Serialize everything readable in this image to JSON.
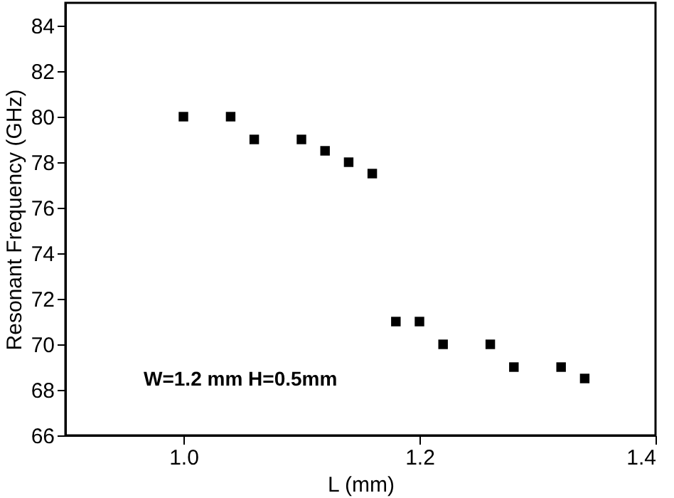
{
  "chart_data": {
    "type": "scatter",
    "xlabel": "L (mm)",
    "ylabel": "Resonant Frequency (GHz)",
    "x": [
      1.0,
      1.04,
      1.06,
      1.1,
      1.12,
      1.14,
      1.16,
      1.18,
      1.2,
      1.22,
      1.26,
      1.28,
      1.32,
      1.34
    ],
    "series": [
      {
        "color": "#000000",
        "values": [
          80,
          80,
          79,
          79,
          78.5,
          78,
          77.5,
          71,
          71,
          70,
          70,
          69,
          69,
          68.5
        ]
      }
    ],
    "xlim": [
      0.9,
      1.4
    ],
    "xticks": [
      {
        "value": 1.0,
        "label": "1.0"
      },
      {
        "value": 1.2,
        "label": "1.2"
      },
      {
        "value": 1.4,
        "label": "1.4"
      }
    ],
    "ylim": [
      66,
      85
    ],
    "yticks": [
      66,
      68,
      70,
      72,
      74,
      76,
      78,
      80,
      82,
      84
    ],
    "marker": "square",
    "grid": false,
    "annotations": [
      "W=1.2 mm H=0.5mm"
    ]
  }
}
